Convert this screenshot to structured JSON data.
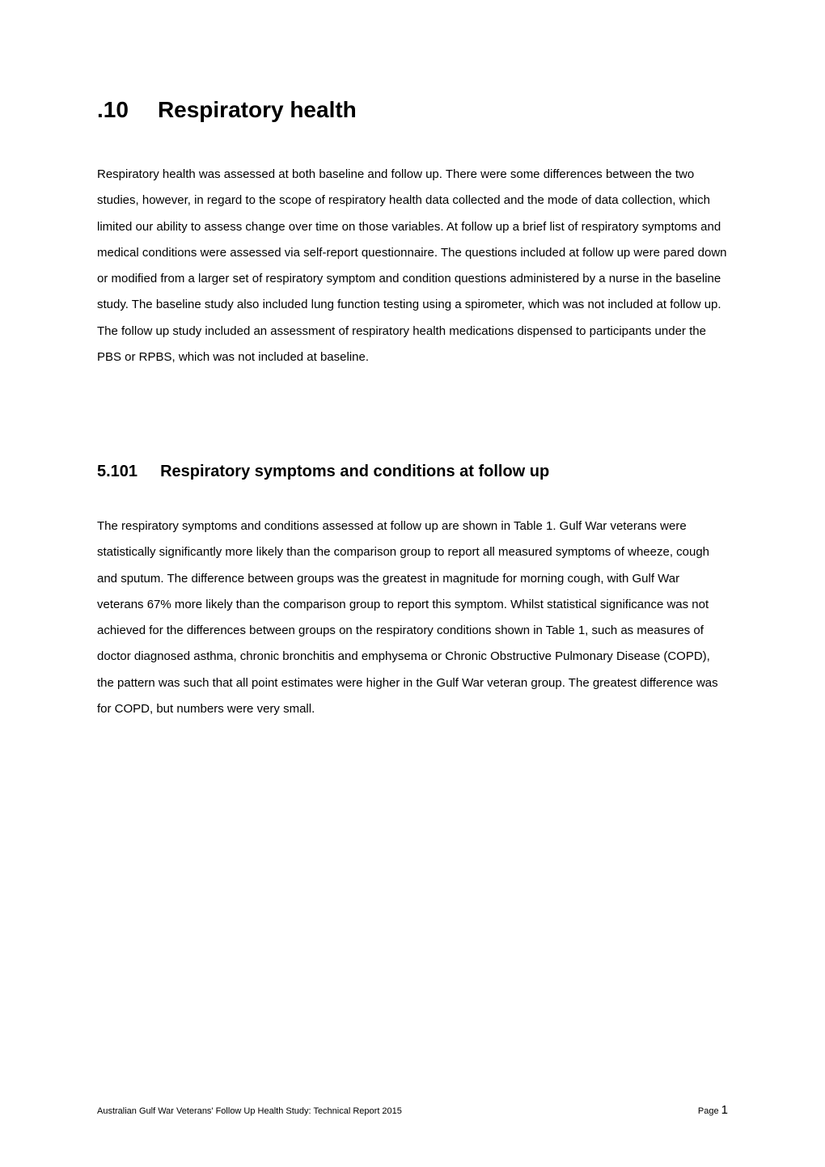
{
  "heading1": {
    "number": ".10",
    "title": "Respiratory health"
  },
  "para1": "Respiratory health was assessed at both baseline and follow up.  There were some differences between the two studies, however, in regard to the scope of respiratory health data collected and the mode of data collection, which limited our ability to assess change over time on those variables.  At follow up a brief list of respiratory symptoms and medical conditions were assessed via self-report questionnaire.  The questions included at follow up were pared down or modified from a larger set of respiratory symptom and condition questions administered by a nurse in the baseline study.  The baseline study also included lung function testing using a spirometer, which was not included at follow up.  The follow up study included an assessment of respiratory health medications dispensed to participants under the PBS or RPBS, which was not included at baseline.",
  "heading2": {
    "number": "5.101",
    "title": "Respiratory symptoms and conditions at follow up"
  },
  "para2": "The respiratory symptoms and conditions assessed at follow up are shown in Table 1.  Gulf War veterans were statistically significantly more likely than the comparison group to report all measured symptoms of wheeze, cough and sputum.  The difference between groups was the greatest in magnitude for morning cough, with Gulf War veterans 67% more likely than the comparison group to report this symptom.  Whilst statistical significance was not achieved for the differences between groups on the respiratory conditions shown in Table 1, such as measures of doctor diagnosed asthma, chronic bronchitis and emphysema or Chronic Obstructive Pulmonary Disease (COPD), the pattern was such that all point estimates were higher in the Gulf War veteran group.  The greatest difference was for COPD, but numbers were very small.",
  "footer": {
    "left": "Australian Gulf War Veterans' Follow Up Health Study: Technical Report 2015",
    "page_label": "Page ",
    "page_number": "1"
  }
}
